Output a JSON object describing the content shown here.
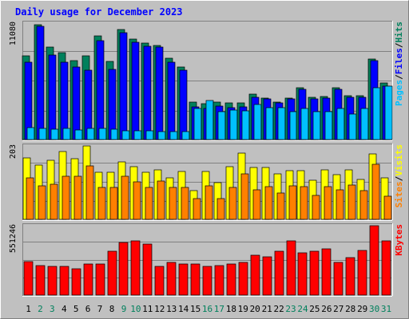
{
  "chart_data": {
    "type": "bar",
    "title": "Daily usage for December 2023",
    "categories": [
      "1",
      "2",
      "3",
      "4",
      "5",
      "6",
      "7",
      "8",
      "9",
      "10",
      "11",
      "12",
      "13",
      "14",
      "15",
      "16",
      "17",
      "18",
      "19",
      "20",
      "21",
      "22",
      "23",
      "24",
      "25",
      "26",
      "27",
      "28",
      "29",
      "30",
      "31"
    ],
    "weekend_categories": [
      "2",
      "3",
      "9",
      "10",
      "16",
      "17",
      "23",
      "24",
      "30",
      "31"
    ],
    "panels": [
      {
        "id": "hits",
        "max_label": "11080",
        "ylim": [
          0,
          11080
        ],
        "legend": [
          "Pages",
          "Files",
          "Hits"
        ],
        "series": [
          {
            "name": "Hits",
            "values": [
              8000,
              10960,
              8800,
              8300,
              7500,
              8000,
              9900,
              7450,
              10450,
              9550,
              9200,
              9000,
              7750,
              6950,
              3600,
              3500,
              3650,
              3550,
              3580,
              4400,
              3960,
              3600,
              4000,
              5000,
              4100,
              4180,
              5000,
              4250,
              4200,
              7700,
              5400
            ]
          },
          {
            "name": "Files",
            "values": [
              7400,
              10750,
              8050,
              7400,
              6950,
              6600,
              9400,
              6700,
              10150,
              9250,
              8900,
              8850,
              7350,
              6650,
              3200,
              3050,
              3250,
              3100,
              3180,
              4050,
              3900,
              3550,
              3950,
              4800,
              3930,
              4030,
              4810,
              4100,
              4050,
              7500,
              5100
            ]
          },
          {
            "name": "Pages",
            "values": [
              1200,
              1150,
              1050,
              1100,
              1000,
              1100,
              1100,
              1050,
              900,
              900,
              900,
              800,
              800,
              800,
              3000,
              3800,
              2700,
              2900,
              2800,
              3400,
              3100,
              3100,
              2700,
              3000,
              2700,
              2700,
              3000,
              2500,
              3000,
              5000,
              5100
            ]
          }
        ]
      },
      {
        "id": "visits",
        "max_label": "203",
        "ylim": [
          0,
          203
        ],
        "legend": [
          "Sites",
          "Visits"
        ],
        "series": [
          {
            "name": "Visits",
            "values": [
              170,
              150,
              164,
              188,
              168,
              203,
              130,
              132,
              160,
              146,
              130,
              137,
              115,
              133,
              80,
              133,
              102,
              147,
              183,
              144,
              143,
              126,
              136,
              136,
              110,
              138,
              124,
              138,
              112,
              182,
              115
            ]
          },
          {
            "name": "Sites",
            "values": [
              115,
              94,
              98,
              120,
              120,
              148,
              90,
              90,
              120,
              104,
              90,
              108,
              90,
              89,
              58,
              93,
              60,
              90,
              126,
              82,
              92,
              75,
              93,
              92,
              68,
              91,
              84,
              97,
              81,
              152,
              66
            ]
          }
        ]
      },
      {
        "id": "kbytes",
        "max_label": "551246",
        "ylim": [
          0,
          551246
        ],
        "legend": [
          "KBytes"
        ],
        "series": [
          {
            "name": "KBytes",
            "values": [
              270000,
              240000,
              230000,
              230000,
              210000,
              250000,
              250000,
              350000,
              420000,
              430000,
              410000,
              230000,
              260000,
              250000,
              250000,
              230000,
              240000,
              250000,
              260000,
              320000,
              310000,
              350000,
              430000,
              340000,
              350000,
              370000,
              260000,
              300000,
              360000,
              551246,
              430000
            ]
          }
        ]
      }
    ],
    "colors": {
      "hits": "#00805c",
      "files": "#0000ff",
      "pages": "#00c0ff",
      "visits": "#ffff00",
      "sites": "#ff8000",
      "kbytes": "#ff0000",
      "title": "#0000ff",
      "weekday_label": "#000000",
      "weekend_label": "#00805c"
    }
  }
}
